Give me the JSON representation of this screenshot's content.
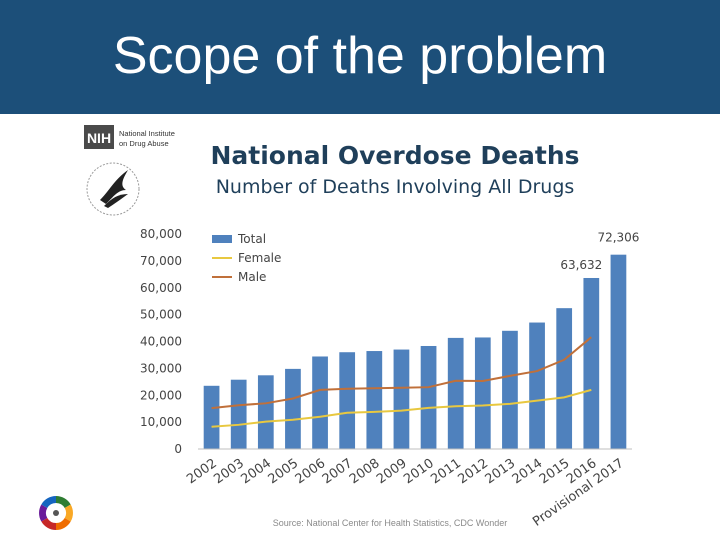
{
  "slide": {
    "title": "Scope of the problem",
    "header_color": "#1c4f79"
  },
  "logos": {
    "nih_abbr": "NIH",
    "nih_name_line1": "National Institute",
    "nih_name_line2": "on Drug Abuse",
    "hhs_icon": "hhs-eagle-seal-icon",
    "ring_icon": "colored-ring-logo-icon"
  },
  "chart_data": {
    "type": "bar",
    "title": "National Overdose Deaths",
    "subtitle": "Number of Deaths Involving All Drugs",
    "categories": [
      "2002",
      "2003",
      "2004",
      "2005",
      "2006",
      "2007",
      "2008",
      "2009",
      "2010",
      "2011",
      "2012",
      "2013",
      "2014",
      "2015",
      "2016",
      "Provisional 2017"
    ],
    "series": [
      {
        "name": "Total",
        "type": "bar",
        "color": "#4f81bd",
        "values": [
          23518,
          25785,
          27424,
          29813,
          34425,
          36010,
          36450,
          37004,
          38329,
          41340,
          41502,
          43982,
          47055,
          52404,
          63632,
          72306
        ]
      },
      {
        "name": "Female",
        "type": "line",
        "color": "#e8c840",
        "values": [
          8300,
          9000,
          10200,
          10900,
          12000,
          13500,
          13800,
          14300,
          15300,
          15900,
          16200,
          16800,
          18000,
          19200,
          22000,
          null
        ]
      },
      {
        "name": "Male",
        "type": "line",
        "color": "#c0703a",
        "values": [
          15200,
          16300,
          17000,
          18800,
          22000,
          22400,
          22600,
          22800,
          23000,
          25400,
          25300,
          27200,
          29000,
          33200,
          41600,
          null
        ]
      }
    ],
    "data_labels": [
      {
        "category": "2016",
        "text": "63,632"
      },
      {
        "category": "Provisional 2017",
        "text": "72,306"
      }
    ],
    "yticks": [
      "0",
      "10,000",
      "20,000",
      "30,000",
      "40,000",
      "50,000",
      "60,000",
      "70,000",
      "80,000"
    ],
    "ylim": [
      0,
      80000
    ],
    "grid": false,
    "legend_position": "top-left",
    "source": "Source: National Center for Health Statistics, CDC Wonder"
  }
}
